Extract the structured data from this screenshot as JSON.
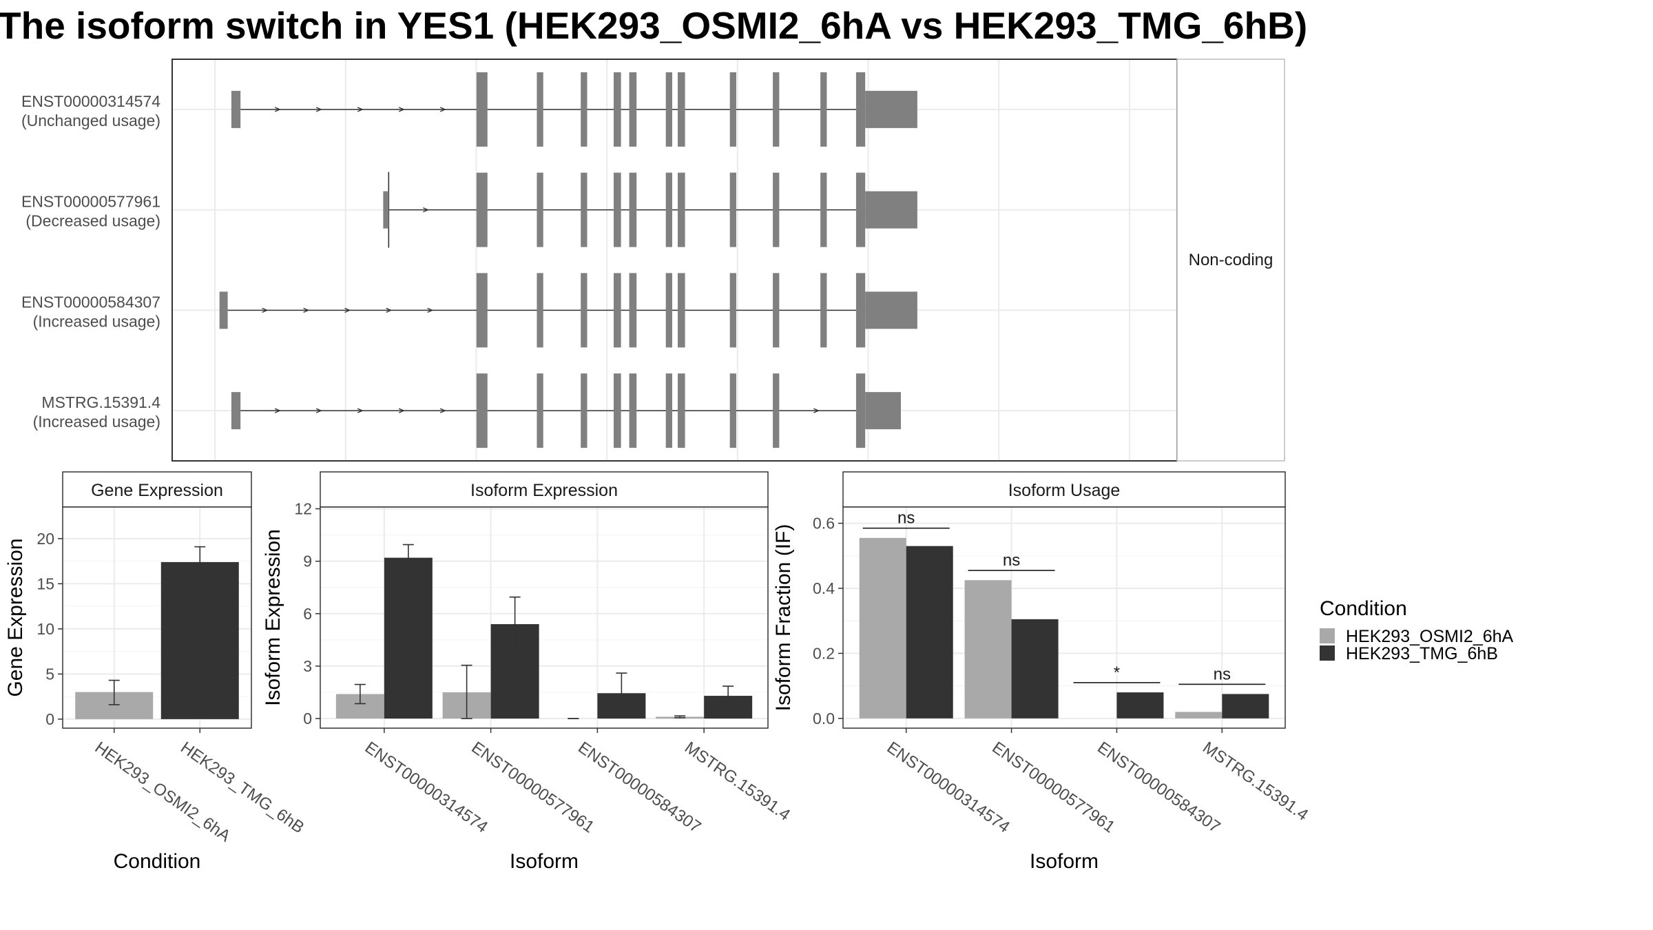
{
  "title": "The isoform switch in YES1 (HEK293_OSMI2_6hA vs HEK293_TMG_6hB)",
  "colors": {
    "condA": "#a9a9a9",
    "condB": "#333333",
    "exon": "#808080",
    "grid": "#ebebeb",
    "strip_bg": "#ffffff",
    "axis_text": "#4d4d4d"
  },
  "legend": {
    "title": "Condition",
    "items": [
      {
        "label": "HEK293_OSMI2_6hA",
        "color": "#a9a9a9"
      },
      {
        "label": "HEK293_TMG_6hB",
        "color": "#333333"
      }
    ]
  },
  "chart_data": [
    {
      "type": "gene-structure",
      "facet_label": "Non-coding",
      "genomic_range": [
        0,
        1000
      ],
      "transcripts": [
        {
          "id": "ENST00000314574",
          "usage": "(Unchanged usage)",
          "exons": [
            [
              18,
              28
            ],
            [
              286,
              298
            ],
            [
              352,
              359
            ],
            [
              400,
              407
            ],
            [
              436,
              444
            ],
            [
              453,
              461
            ],
            [
              493,
              500
            ],
            [
              506,
              514
            ],
            [
              563,
              570
            ],
            [
              610,
              617
            ],
            [
              662,
              669
            ],
            [
              701,
              711
            ],
            [
              711,
              768
            ]
          ],
          "exon_heights": [
            "small",
            "big",
            "big",
            "big",
            "big",
            "big",
            "big",
            "big",
            "big",
            "big",
            "big",
            "big",
            "utr"
          ]
        },
        {
          "id": "ENST00000577961",
          "usage": "(Decreased usage)",
          "exons": [
            [
              184,
              190
            ],
            [
              286,
              298
            ],
            [
              352,
              359
            ],
            [
              400,
              407
            ],
            [
              436,
              444
            ],
            [
              453,
              461
            ],
            [
              493,
              500
            ],
            [
              506,
              514
            ],
            [
              563,
              570
            ],
            [
              610,
              617
            ],
            [
              662,
              669
            ],
            [
              701,
              711
            ],
            [
              711,
              768
            ]
          ],
          "exon_heights": [
            "small",
            "big",
            "big",
            "big",
            "big",
            "big",
            "big",
            "big",
            "big",
            "big",
            "big",
            "big",
            "utr"
          ]
        },
        {
          "id": "ENST00000584307",
          "usage": "(Increased usage)",
          "exons": [
            [
              5,
              14
            ],
            [
              286,
              298
            ],
            [
              352,
              359
            ],
            [
              400,
              407
            ],
            [
              436,
              444
            ],
            [
              453,
              461
            ],
            [
              493,
              500
            ],
            [
              506,
              514
            ],
            [
              563,
              570
            ],
            [
              610,
              617
            ],
            [
              662,
              669
            ],
            [
              701,
              711
            ],
            [
              711,
              768
            ]
          ],
          "exon_heights": [
            "small",
            "big",
            "big",
            "big",
            "big",
            "big",
            "big",
            "big",
            "big",
            "big",
            "big",
            "big",
            "utr"
          ]
        },
        {
          "id": "MSTRG.15391.4",
          "usage": "(Increased usage)",
          "exons": [
            [
              18,
              28
            ],
            [
              286,
              298
            ],
            [
              352,
              359
            ],
            [
              400,
              407
            ],
            [
              436,
              444
            ],
            [
              453,
              461
            ],
            [
              493,
              500
            ],
            [
              506,
              514
            ],
            [
              563,
              570
            ],
            [
              610,
              617
            ],
            [
              701,
              711
            ],
            [
              711,
              750
            ]
          ],
          "exon_heights": [
            "small",
            "big",
            "big",
            "big",
            "big",
            "big",
            "big",
            "big",
            "big",
            "big",
            "big",
            "utr"
          ]
        }
      ]
    },
    {
      "type": "bar",
      "title": "Gene Expression",
      "xlabel": "Condition",
      "ylabel": "Gene Expression",
      "ylim": [
        -1,
        23.5
      ],
      "yticks": [
        0,
        5,
        10,
        15,
        20
      ],
      "grid": true,
      "categories": [
        "HEK293_OSMI2_6hA",
        "HEK293_TMG_6hB"
      ],
      "series": [
        {
          "values": [
            3.0,
            17.4
          ],
          "err_low": [
            1.6,
            15.8
          ],
          "err_high": [
            4.3,
            19.1
          ]
        }
      ]
    },
    {
      "type": "bar",
      "title": "Isoform Expression",
      "xlabel": "Isoform",
      "ylabel": "Isoform Expression",
      "ylim": [
        -0.55,
        12.1
      ],
      "yticks": [
        0,
        3,
        6,
        9,
        12
      ],
      "grid": true,
      "categories": [
        "ENST00000314574",
        "ENST00000577961",
        "ENST00000584307",
        "MSTRG.15391.4"
      ],
      "series": [
        {
          "name": "HEK293_OSMI2_6hA",
          "values": [
            1.4,
            1.5,
            0.0,
            0.1
          ],
          "err_low": [
            0.85,
            0.0,
            0.0,
            0.05
          ],
          "err_high": [
            1.95,
            3.05,
            0.0,
            0.15
          ]
        },
        {
          "name": "HEK293_TMG_6hB",
          "values": [
            9.2,
            5.4,
            1.45,
            1.3
          ],
          "err_low": [
            8.4,
            3.85,
            0.35,
            0.75
          ],
          "err_high": [
            9.95,
            6.95,
            2.6,
            1.85
          ]
        }
      ]
    },
    {
      "type": "bar",
      "title": "Isoform Usage",
      "xlabel": "Isoform",
      "ylabel": "Isoform Fraction (IF)",
      "ylim": [
        -0.03,
        0.65
      ],
      "yticks": [
        0.0,
        0.2,
        0.4,
        0.6
      ],
      "ytick_labels": [
        "0.0",
        "0.2",
        "0.4",
        "0.6"
      ],
      "grid": true,
      "categories": [
        "ENST00000314574",
        "ENST00000577961",
        "ENST00000584307",
        "MSTRG.15391.4"
      ],
      "series": [
        {
          "name": "HEK293_OSMI2_6hA",
          "values": [
            0.555,
            0.425,
            0.0,
            0.02
          ]
        },
        {
          "name": "HEK293_TMG_6hB",
          "values": [
            0.53,
            0.305,
            0.08,
            0.075
          ]
        }
      ],
      "significance": [
        {
          "label": "ns",
          "y": 0.585
        },
        {
          "label": "ns",
          "y": 0.455
        },
        {
          "label": "*",
          "y": 0.11
        },
        {
          "label": "ns",
          "y": 0.105
        }
      ]
    }
  ]
}
